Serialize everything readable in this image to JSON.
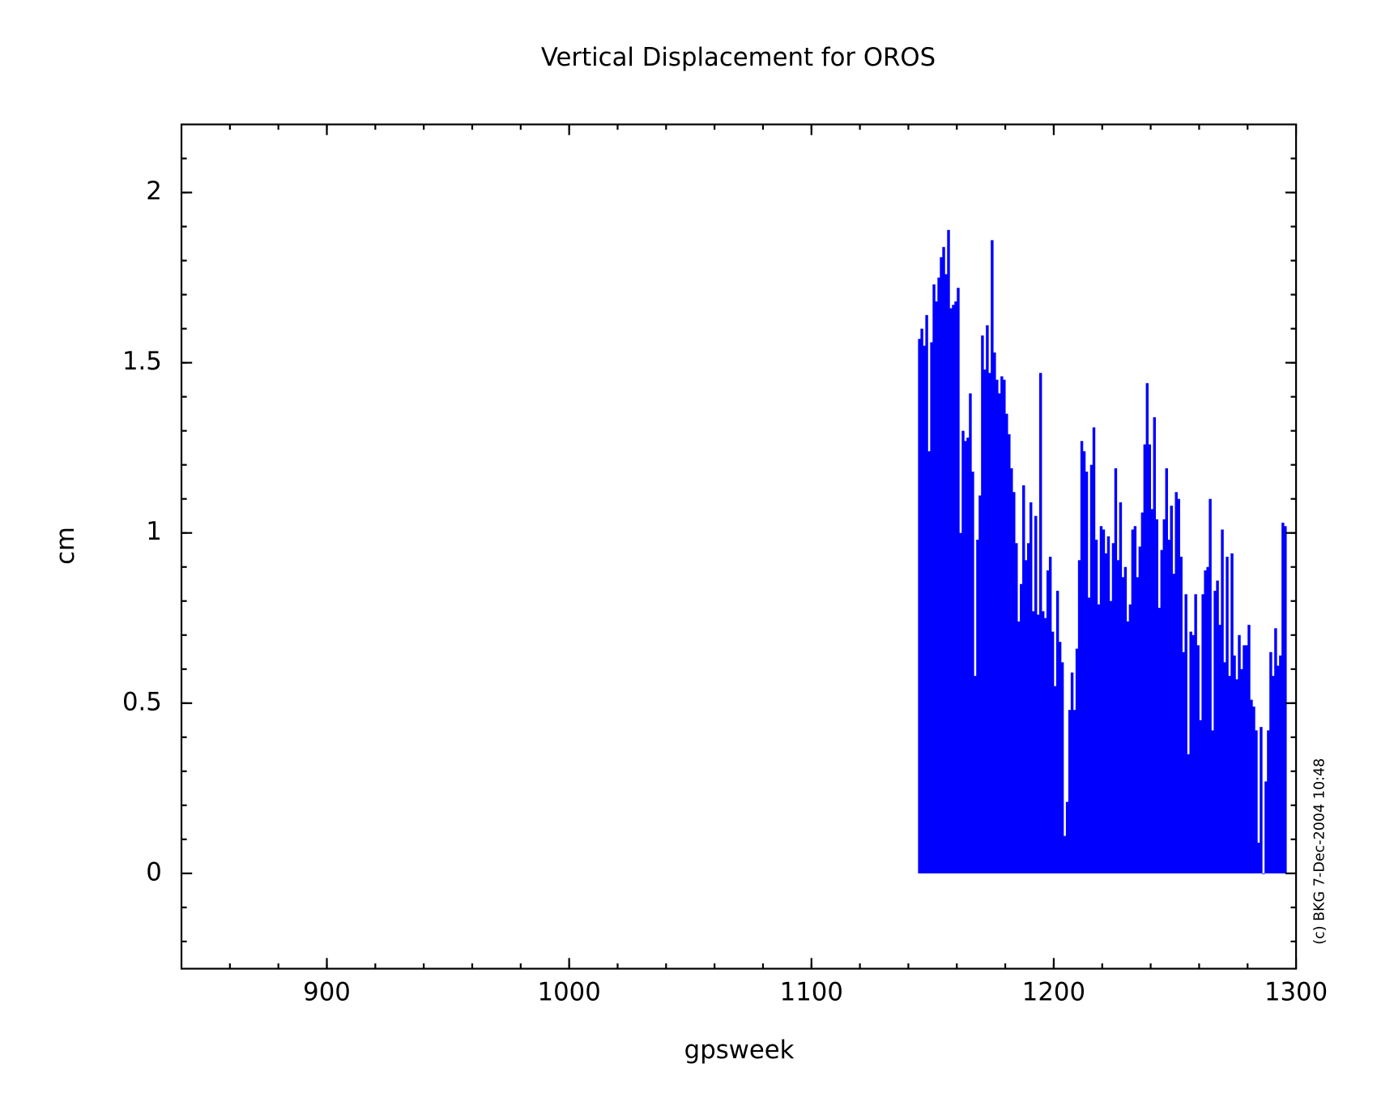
{
  "chart_data": {
    "type": "bar",
    "title": "Vertical Displacement for OROS",
    "x_label": "gpsweek",
    "y_label": "cm",
    "annotation": "(c) BKG 7-Dec-2004 10:48",
    "color": "#0000ff",
    "xlim": [
      840,
      1300
    ],
    "xticks": [
      900,
      1000,
      1100,
      1200,
      1300
    ],
    "ylim": [
      -0.28,
      2.2
    ],
    "yticks": [
      0,
      0.5,
      1,
      1.5,
      2
    ],
    "x": [
      1144,
      1145,
      1146,
      1147,
      1148,
      1149,
      1150,
      1151,
      1152,
      1153,
      1154,
      1155,
      1156,
      1157,
      1158,
      1159,
      1160,
      1161,
      1162,
      1163,
      1164,
      1165,
      1166,
      1167,
      1168,
      1169,
      1170,
      1171,
      1172,
      1173,
      1174,
      1175,
      1176,
      1177,
      1178,
      1179,
      1180,
      1181,
      1182,
      1183,
      1184,
      1185,
      1186,
      1187,
      1188,
      1189,
      1190,
      1191,
      1192,
      1193,
      1194,
      1195,
      1196,
      1197,
      1198,
      1199,
      1200,
      1201,
      1202,
      1203,
      1204,
      1205,
      1206,
      1207,
      1208,
      1209,
      1210,
      1211,
      1212,
      1213,
      1214,
      1215,
      1216,
      1217,
      1218,
      1219,
      1220,
      1221,
      1222,
      1223,
      1224,
      1225,
      1226,
      1227,
      1228,
      1229,
      1230,
      1231,
      1232,
      1233,
      1234,
      1235,
      1236,
      1237,
      1238,
      1239,
      1240,
      1241,
      1242,
      1243,
      1244,
      1245,
      1246,
      1247,
      1248,
      1249,
      1250,
      1251,
      1252,
      1253,
      1254,
      1255,
      1256,
      1257,
      1258,
      1259,
      1260,
      1261,
      1262,
      1263,
      1264,
      1265,
      1266,
      1267,
      1268,
      1269,
      1270,
      1271,
      1272,
      1273,
      1274,
      1275,
      1276,
      1277,
      1278,
      1279,
      1280,
      1281,
      1282,
      1283,
      1284,
      1285,
      1286,
      1287,
      1288,
      1289,
      1290,
      1291,
      1292,
      1293,
      1294,
      1295
    ],
    "values": [
      1.57,
      1.6,
      1.55,
      1.64,
      1.24,
      1.56,
      1.73,
      1.68,
      1.75,
      1.81,
      1.84,
      1.76,
      1.89,
      1.66,
      1.67,
      1.68,
      1.72,
      1.0,
      1.3,
      1.27,
      1.28,
      1.41,
      1.18,
      0.58,
      0.98,
      1.11,
      1.58,
      1.48,
      1.61,
      1.47,
      1.86,
      1.53,
      1.45,
      1.41,
      1.46,
      1.45,
      1.35,
      1.29,
      1.19,
      1.12,
      0.97,
      0.74,
      0.85,
      1.14,
      0.92,
      0.97,
      1.09,
      0.77,
      1.05,
      0.76,
      1.47,
      0.77,
      0.75,
      0.89,
      0.93,
      0.71,
      0.55,
      0.83,
      0.68,
      0.62,
      0.11,
      0.21,
      0.48,
      0.59,
      0.48,
      0.66,
      0.92,
      1.27,
      1.24,
      1.18,
      0.81,
      1.2,
      1.31,
      0.98,
      0.79,
      1.02,
      1.01,
      0.94,
      0.99,
      0.8,
      0.97,
      1.19,
      0.92,
      1.09,
      0.87,
      0.9,
      0.74,
      0.79,
      1.01,
      1.02,
      0.87,
      0.96,
      1.06,
      1.26,
      1.44,
      1.26,
      1.07,
      1.34,
      1.04,
      0.78,
      0.95,
      1.04,
      1.19,
      0.98,
      1.08,
      0.88,
      1.12,
      1.1,
      0.93,
      0.65,
      0.82,
      0.35,
      0.71,
      0.7,
      0.82,
      0.67,
      0.45,
      0.82,
      0.89,
      0.9,
      1.1,
      0.42,
      0.83,
      0.86,
      0.73,
      1.01,
      0.62,
      0.93,
      0.58,
      0.94,
      0.64,
      0.57,
      0.7,
      0.6,
      0.67,
      0.67,
      0.73,
      0.51,
      0.49,
      0.42,
      0.09,
      0.43,
      0.0,
      0.27,
      0.42,
      0.65,
      0.58,
      0.72,
      0.61,
      0.64,
      1.03,
      1.02
    ]
  }
}
